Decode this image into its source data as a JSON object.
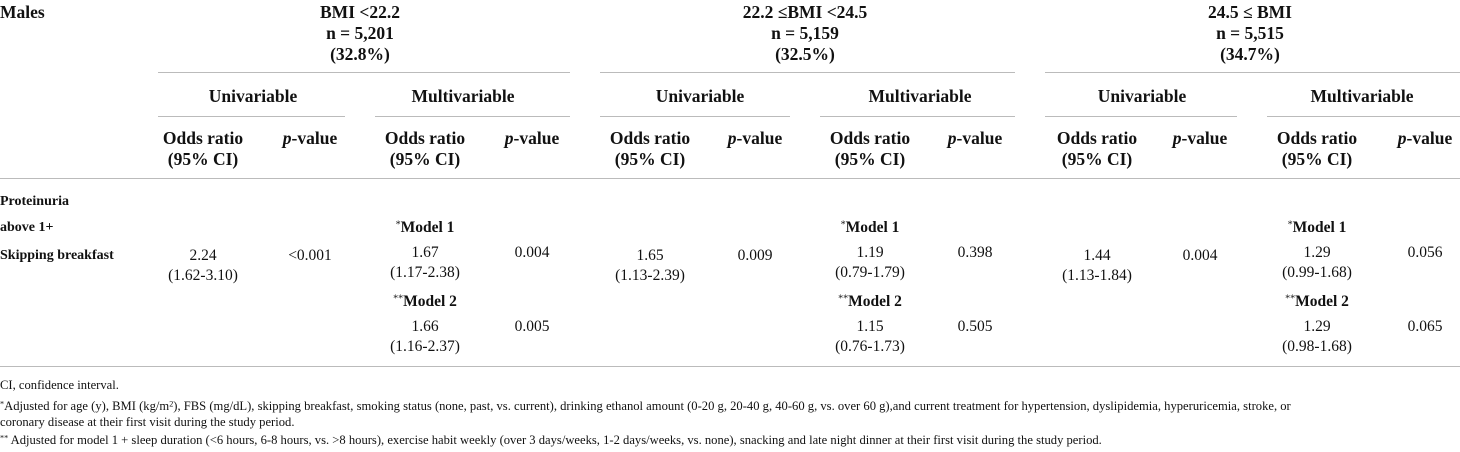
{
  "header": {
    "stub": "Males",
    "groups": [
      {
        "lines": [
          "BMI <22.2",
          "n = 5,201",
          "(32.8%)"
        ],
        "analyses": [
          "Univariable",
          "Multivariable"
        ]
      },
      {
        "lines": [
          "22.2 ≤BMI <24.5",
          "n = 5,159",
          "(32.5%)"
        ],
        "analyses": [
          "Univariable",
          "Multivariable"
        ]
      },
      {
        "lines": [
          "24.5 ≤ BMI",
          "n = 5,515",
          "(34.7%)"
        ],
        "analyses": [
          "Univariable",
          "Multivariable"
        ]
      }
    ],
    "odds_ratio": [
      "Odds ratio",
      "(95% CI)"
    ],
    "p_value": {
      "italic": "p",
      "rest": "-value"
    }
  },
  "rows": {
    "labels": [
      "Proteinuria",
      "above 1+",
      "Skipping breakfast"
    ],
    "groups": [
      {
        "univariable": {
          "or": "2.24",
          "ci": "(1.62-3.10)",
          "p": "<0.001"
        },
        "models": [
          {
            "marker": "*",
            "label": "Model 1",
            "or": "1.67",
            "ci": "(1.17-2.38)",
            "p": "0.004"
          },
          {
            "marker": "**",
            "label": "Model 2",
            "or": "1.66",
            "ci": "(1.16-2.37)",
            "p": "0.005"
          }
        ]
      },
      {
        "univariable": {
          "or": "1.65",
          "ci": "(1.13-2.39)",
          "p": "0.009"
        },
        "models": [
          {
            "marker": "*",
            "label": "Model 1",
            "or": "1.19",
            "ci": "(0.79-1.79)",
            "p": "0.398"
          },
          {
            "marker": "**",
            "label": "Model 2",
            "or": "1.15",
            "ci": "(0.76-1.73)",
            "p": "0.505"
          }
        ]
      },
      {
        "univariable": {
          "or": "1.44",
          "ci": "(1.13-1.84)",
          "p": "0.004"
        },
        "models": [
          {
            "marker": "*",
            "label": "Model 1",
            "or": "1.29",
            "ci": "(0.99-1.68)",
            "p": "0.056"
          },
          {
            "marker": "**",
            "label": "Model 2",
            "or": "1.29",
            "ci": "(0.98-1.68)",
            "p": "0.065"
          }
        ]
      }
    ]
  },
  "footnotes": {
    "ci": "CI, confidence interval.",
    "model1": {
      "marker": "*",
      "text_a": "Adjusted for age (y), BMI (kg/m",
      "sup": "2",
      "text_b": "), FBS (mg/dL), skipping breakfast, smoking status (none, past, vs. current), drinking ethanol amount (0-20 g, 20-40 g, 40-60 g, vs. over 60 g),and current treatment for hypertension, dyslipidemia, hyperuricemia, stroke, or",
      "text_c": "coronary disease at their first visit during the study period."
    },
    "model2": {
      "marker": "**",
      "text": " Adjusted for model 1 + sleep duration (<6 hours, 6-8 hours, vs. >8 hours), exercise habit weekly (over 3 days/weeks, 1-2 days/weeks, vs. none), snacking and late night dinner at their first visit during the study period."
    }
  }
}
